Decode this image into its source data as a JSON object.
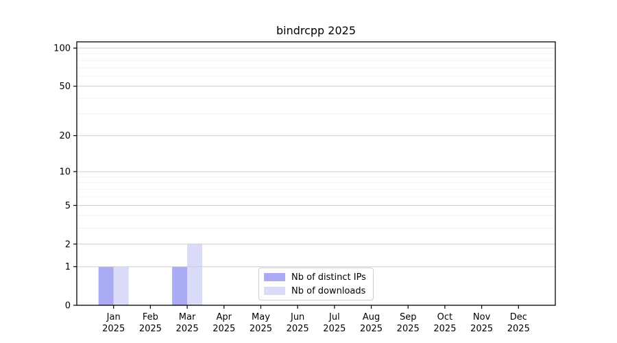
{
  "chart_data": {
    "type": "bar",
    "title": "bindrcpp 2025",
    "categories": [
      "Jan",
      "Feb",
      "Mar",
      "Apr",
      "May",
      "Jun",
      "Jul",
      "Aug",
      "Sep",
      "Oct",
      "Nov",
      "Dec"
    ],
    "x_sublabel": "2025",
    "series": [
      {
        "name": "Nb of distinct IPs",
        "color": "#aaaaf5",
        "values": [
          1,
          0,
          1,
          0,
          0,
          0,
          0,
          0,
          0,
          0,
          0,
          0
        ]
      },
      {
        "name": "Nb of downloads",
        "color": "#dadaf9",
        "values": [
          1,
          0,
          2,
          0,
          0,
          0,
          0,
          0,
          0,
          0,
          0,
          0
        ]
      }
    ],
    "yscale": "log1p",
    "ylim": [
      0,
      112
    ],
    "y_major_ticks": [
      0,
      1,
      2,
      5,
      10,
      20,
      50,
      100
    ],
    "y_minor_ticks": [
      3,
      4,
      6,
      7,
      8,
      9,
      30,
      40,
      60,
      70,
      80,
      90
    ],
    "grid": "horizontal",
    "legend_position": "bottom-center-inside",
    "colors": {
      "axis": "#000000",
      "major_grid": "#cdcdcd",
      "minor_grid": "#f0f0f0",
      "text": "#000000",
      "legend_border": "#cccccc",
      "background": "#ffffff"
    }
  }
}
